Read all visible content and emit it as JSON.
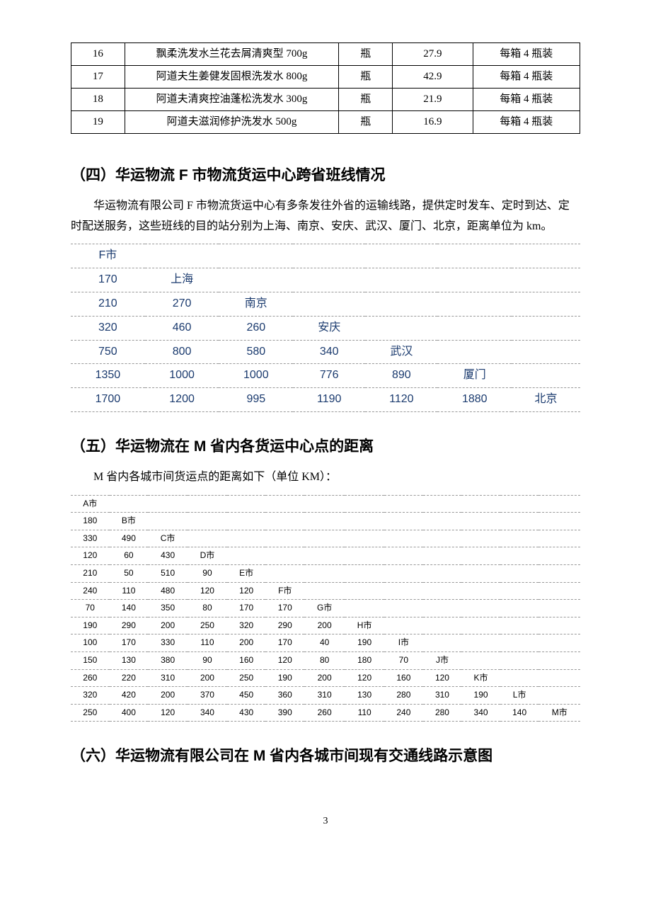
{
  "products": {
    "rows": [
      {
        "id": "16",
        "name": "飘柔洗发水兰花去屑清爽型 700g",
        "unit": "瓶",
        "price": "27.9",
        "pack": "每箱 4 瓶装"
      },
      {
        "id": "17",
        "name": "阿道夫生姜健发固根洗发水 800g",
        "unit": "瓶",
        "price": "42.9",
        "pack": "每箱 4 瓶装"
      },
      {
        "id": "18",
        "name": "阿道夫清爽控油蓬松洗发水 300g",
        "unit": "瓶",
        "price": "21.9",
        "pack": "每箱 4 瓶装"
      },
      {
        "id": "19",
        "name": "阿道夫滋润修护洗发水 500g",
        "unit": "瓶",
        "price": "16.9",
        "pack": "每箱 4 瓶装"
      }
    ]
  },
  "section4": {
    "title": "（四）华运物流 F 市物流货运中心跨省班线情况",
    "para": "华运物流有限公司 F 市物流货运中心有多条发往外省的运输线路，提供定时发车、定时到达、定时配送服务，这些班线的目的站分别为上海、南京、安庆、武汉、厦门、北京，距离单位为 km。",
    "matrix": [
      [
        "F市",
        "",
        "",
        "",
        "",
        "",
        ""
      ],
      [
        "170",
        "上海",
        "",
        "",
        "",
        "",
        ""
      ],
      [
        "210",
        "270",
        "南京",
        "",
        "",
        "",
        ""
      ],
      [
        "320",
        "460",
        "260",
        "安庆",
        "",
        "",
        ""
      ],
      [
        "750",
        "800",
        "580",
        "340",
        "武汉",
        "",
        ""
      ],
      [
        "1350",
        "1000",
        "1000",
        "776",
        "890",
        "厦门",
        ""
      ],
      [
        "1700",
        "1200",
        "995",
        "1190",
        "1120",
        "1880",
        "北京"
      ]
    ]
  },
  "section5": {
    "title": "（五）华运物流在 M 省内各货运中心点的距离",
    "para": "M 省内各城市间货运点的距离如下（单位 KM）：",
    "matrix": [
      [
        "A市",
        "",
        "",
        "",
        "",
        "",
        "",
        "",
        "",
        "",
        "",
        "",
        ""
      ],
      [
        "180",
        "B市",
        "",
        "",
        "",
        "",
        "",
        "",
        "",
        "",
        "",
        "",
        ""
      ],
      [
        "330",
        "490",
        "C市",
        "",
        "",
        "",
        "",
        "",
        "",
        "",
        "",
        "",
        ""
      ],
      [
        "120",
        "60",
        "430",
        "D市",
        "",
        "",
        "",
        "",
        "",
        "",
        "",
        "",
        ""
      ],
      [
        "210",
        "50",
        "510",
        "90",
        "E市",
        "",
        "",
        "",
        "",
        "",
        "",
        "",
        ""
      ],
      [
        "240",
        "110",
        "480",
        "120",
        "120",
        "F市",
        "",
        "",
        "",
        "",
        "",
        "",
        ""
      ],
      [
        "70",
        "140",
        "350",
        "80",
        "170",
        "170",
        "G市",
        "",
        "",
        "",
        "",
        "",
        ""
      ],
      [
        "190",
        "290",
        "200",
        "250",
        "320",
        "290",
        "200",
        "H市",
        "",
        "",
        "",
        "",
        ""
      ],
      [
        "100",
        "170",
        "330",
        "110",
        "200",
        "170",
        "40",
        "190",
        "I市",
        "",
        "",
        "",
        ""
      ],
      [
        "150",
        "130",
        "380",
        "90",
        "160",
        "120",
        "80",
        "180",
        "70",
        "J市",
        "",
        "",
        ""
      ],
      [
        "260",
        "220",
        "310",
        "200",
        "250",
        "190",
        "200",
        "120",
        "160",
        "120",
        "K市",
        "",
        ""
      ],
      [
        "320",
        "420",
        "200",
        "370",
        "450",
        "360",
        "310",
        "130",
        "280",
        "310",
        "190",
        "L市",
        ""
      ],
      [
        "250",
        "400",
        "120",
        "340",
        "430",
        "390",
        "260",
        "110",
        "240",
        "280",
        "340",
        "140",
        "M市"
      ]
    ]
  },
  "section6": {
    "title": "（六）华运物流有限公司在 M 省内各城市间现有交通线路示意图"
  },
  "page_number": "3"
}
